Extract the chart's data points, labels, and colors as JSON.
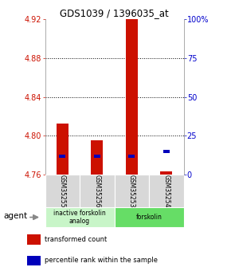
{
  "title": "GDS1039 / 1396035_at",
  "samples": [
    "GSM35255",
    "GSM35256",
    "GSM35253",
    "GSM35254"
  ],
  "y_min": 4.76,
  "y_max": 4.92,
  "y_ticks": [
    4.76,
    4.8,
    4.84,
    4.88,
    4.92
  ],
  "right_y_ticks": [
    0,
    25,
    50,
    75,
    100
  ],
  "right_y_tick_labels": [
    "0",
    "25",
    "50",
    "75",
    "100%"
  ],
  "bar_base": 4.76,
  "red_bar_tops": [
    4.813,
    4.795,
    4.921,
    4.763
  ],
  "blue_pct": [
    12,
    12,
    12,
    15
  ],
  "groups": [
    {
      "label": "inactive forskolin\nanalog",
      "samples": [
        0,
        1
      ],
      "color": "#c8f5c8"
    },
    {
      "label": "forskolin",
      "samples": [
        2,
        3
      ],
      "color": "#66dd66"
    }
  ],
  "legend_items": [
    {
      "color": "#cc1100",
      "label": "transformed count"
    },
    {
      "color": "#0000bb",
      "label": "percentile rank within the sample"
    }
  ],
  "red_color": "#cc1100",
  "blue_color": "#0000bb",
  "bar_width": 0.35,
  "left_tick_color": "#cc1100",
  "right_tick_color": "#0000cc"
}
